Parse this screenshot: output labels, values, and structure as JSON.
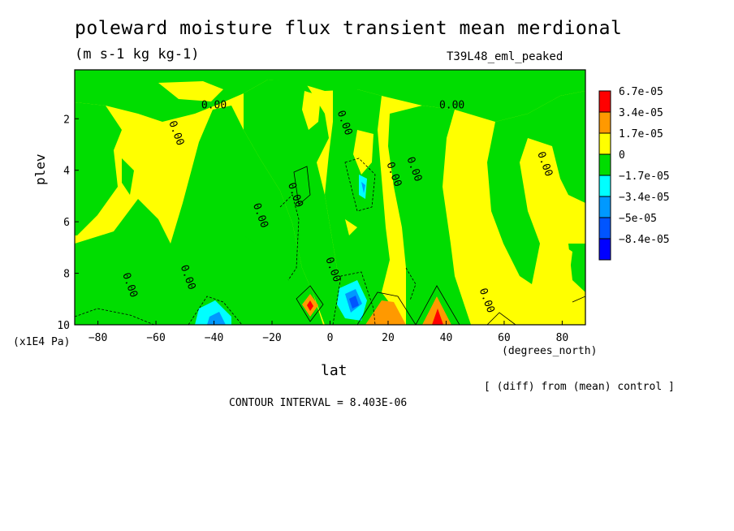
{
  "title": "poleward moisture flux transient mean merdional",
  "units": "(m s-1 kg kg-1)",
  "experiment": "T39L48_eml_peaked",
  "note": "[ (diff) from (mean) control ]",
  "contour_interval": "CONTOUR INTERVAL = 8.403E-06",
  "chart_data": {
    "type": "heatmap",
    "title": "poleward moisture flux transient mean merdional",
    "subtitle": "(m s-1 kg kg-1)",
    "xlabel": "lat",
    "xunit": "(degrees_north)",
    "ylabel": "plev",
    "yunit": "(x1E4 Pa)",
    "xlim": [
      -88,
      88
    ],
    "ylim": [
      10,
      0.1
    ],
    "xticks": [
      -80,
      -60,
      -40,
      -20,
      0,
      20,
      40,
      60,
      80
    ],
    "xtick_labels": [
      "−80",
      "−60",
      "−40",
      "−20",
      "0",
      "20",
      "40",
      "60",
      "80"
    ],
    "yticks": [
      2,
      4,
      6,
      8,
      10
    ],
    "ytick_labels": [
      "2",
      "4",
      "6",
      "8",
      "10"
    ],
    "contour_labels": [
      {
        "text": "0.00",
        "lat": -40,
        "plev": 1.6
      },
      {
        "text": "0.00",
        "lat": 42,
        "plev": 1.6
      },
      {
        "text": "0.00",
        "lat": -54,
        "plev": 2.6
      },
      {
        "text": "0.00",
        "lat": 4,
        "plev": 2.2
      },
      {
        "text": "0.00",
        "lat": 21,
        "plev": 4.2
      },
      {
        "text": "0.00",
        "lat": 28,
        "plev": 4.0
      },
      {
        "text": "0.00",
        "lat": 73,
        "plev": 3.8
      },
      {
        "text": "0.00",
        "lat": -13,
        "plev": 5.0
      },
      {
        "text": "0.00",
        "lat": -25,
        "plev": 5.8
      },
      {
        "text": "0.00",
        "lat": -50,
        "plev": 8.2
      },
      {
        "text": "0.00",
        "lat": 0,
        "plev": 7.9
      },
      {
        "text": "0.00",
        "lat": -70,
        "plev": 8.5
      },
      {
        "text": "0.00",
        "lat": 53,
        "plev": 9.1
      }
    ],
    "legend": {
      "position": "right",
      "entries": [
        {
          "label": "6.7e-05",
          "color": "#ff0000"
        },
        {
          "label": "3.4e-05",
          "color": "#ff9900"
        },
        {
          "label": "1.7e-05",
          "color": "#ffff00"
        },
        {
          "label": "0",
          "color": "#00dd00"
        },
        {
          "label": "−1.7e-05",
          "color": "#00ffff"
        },
        {
          "label": "−3.4e-05",
          "color": "#0099ff"
        },
        {
          "label": "−5e-05",
          "color": "#0055ff"
        },
        {
          "label": "−8.4e-05",
          "color": "#0000ff"
        }
      ]
    },
    "background_color": "#ffff00",
    "negative_color": "#00dd00"
  }
}
